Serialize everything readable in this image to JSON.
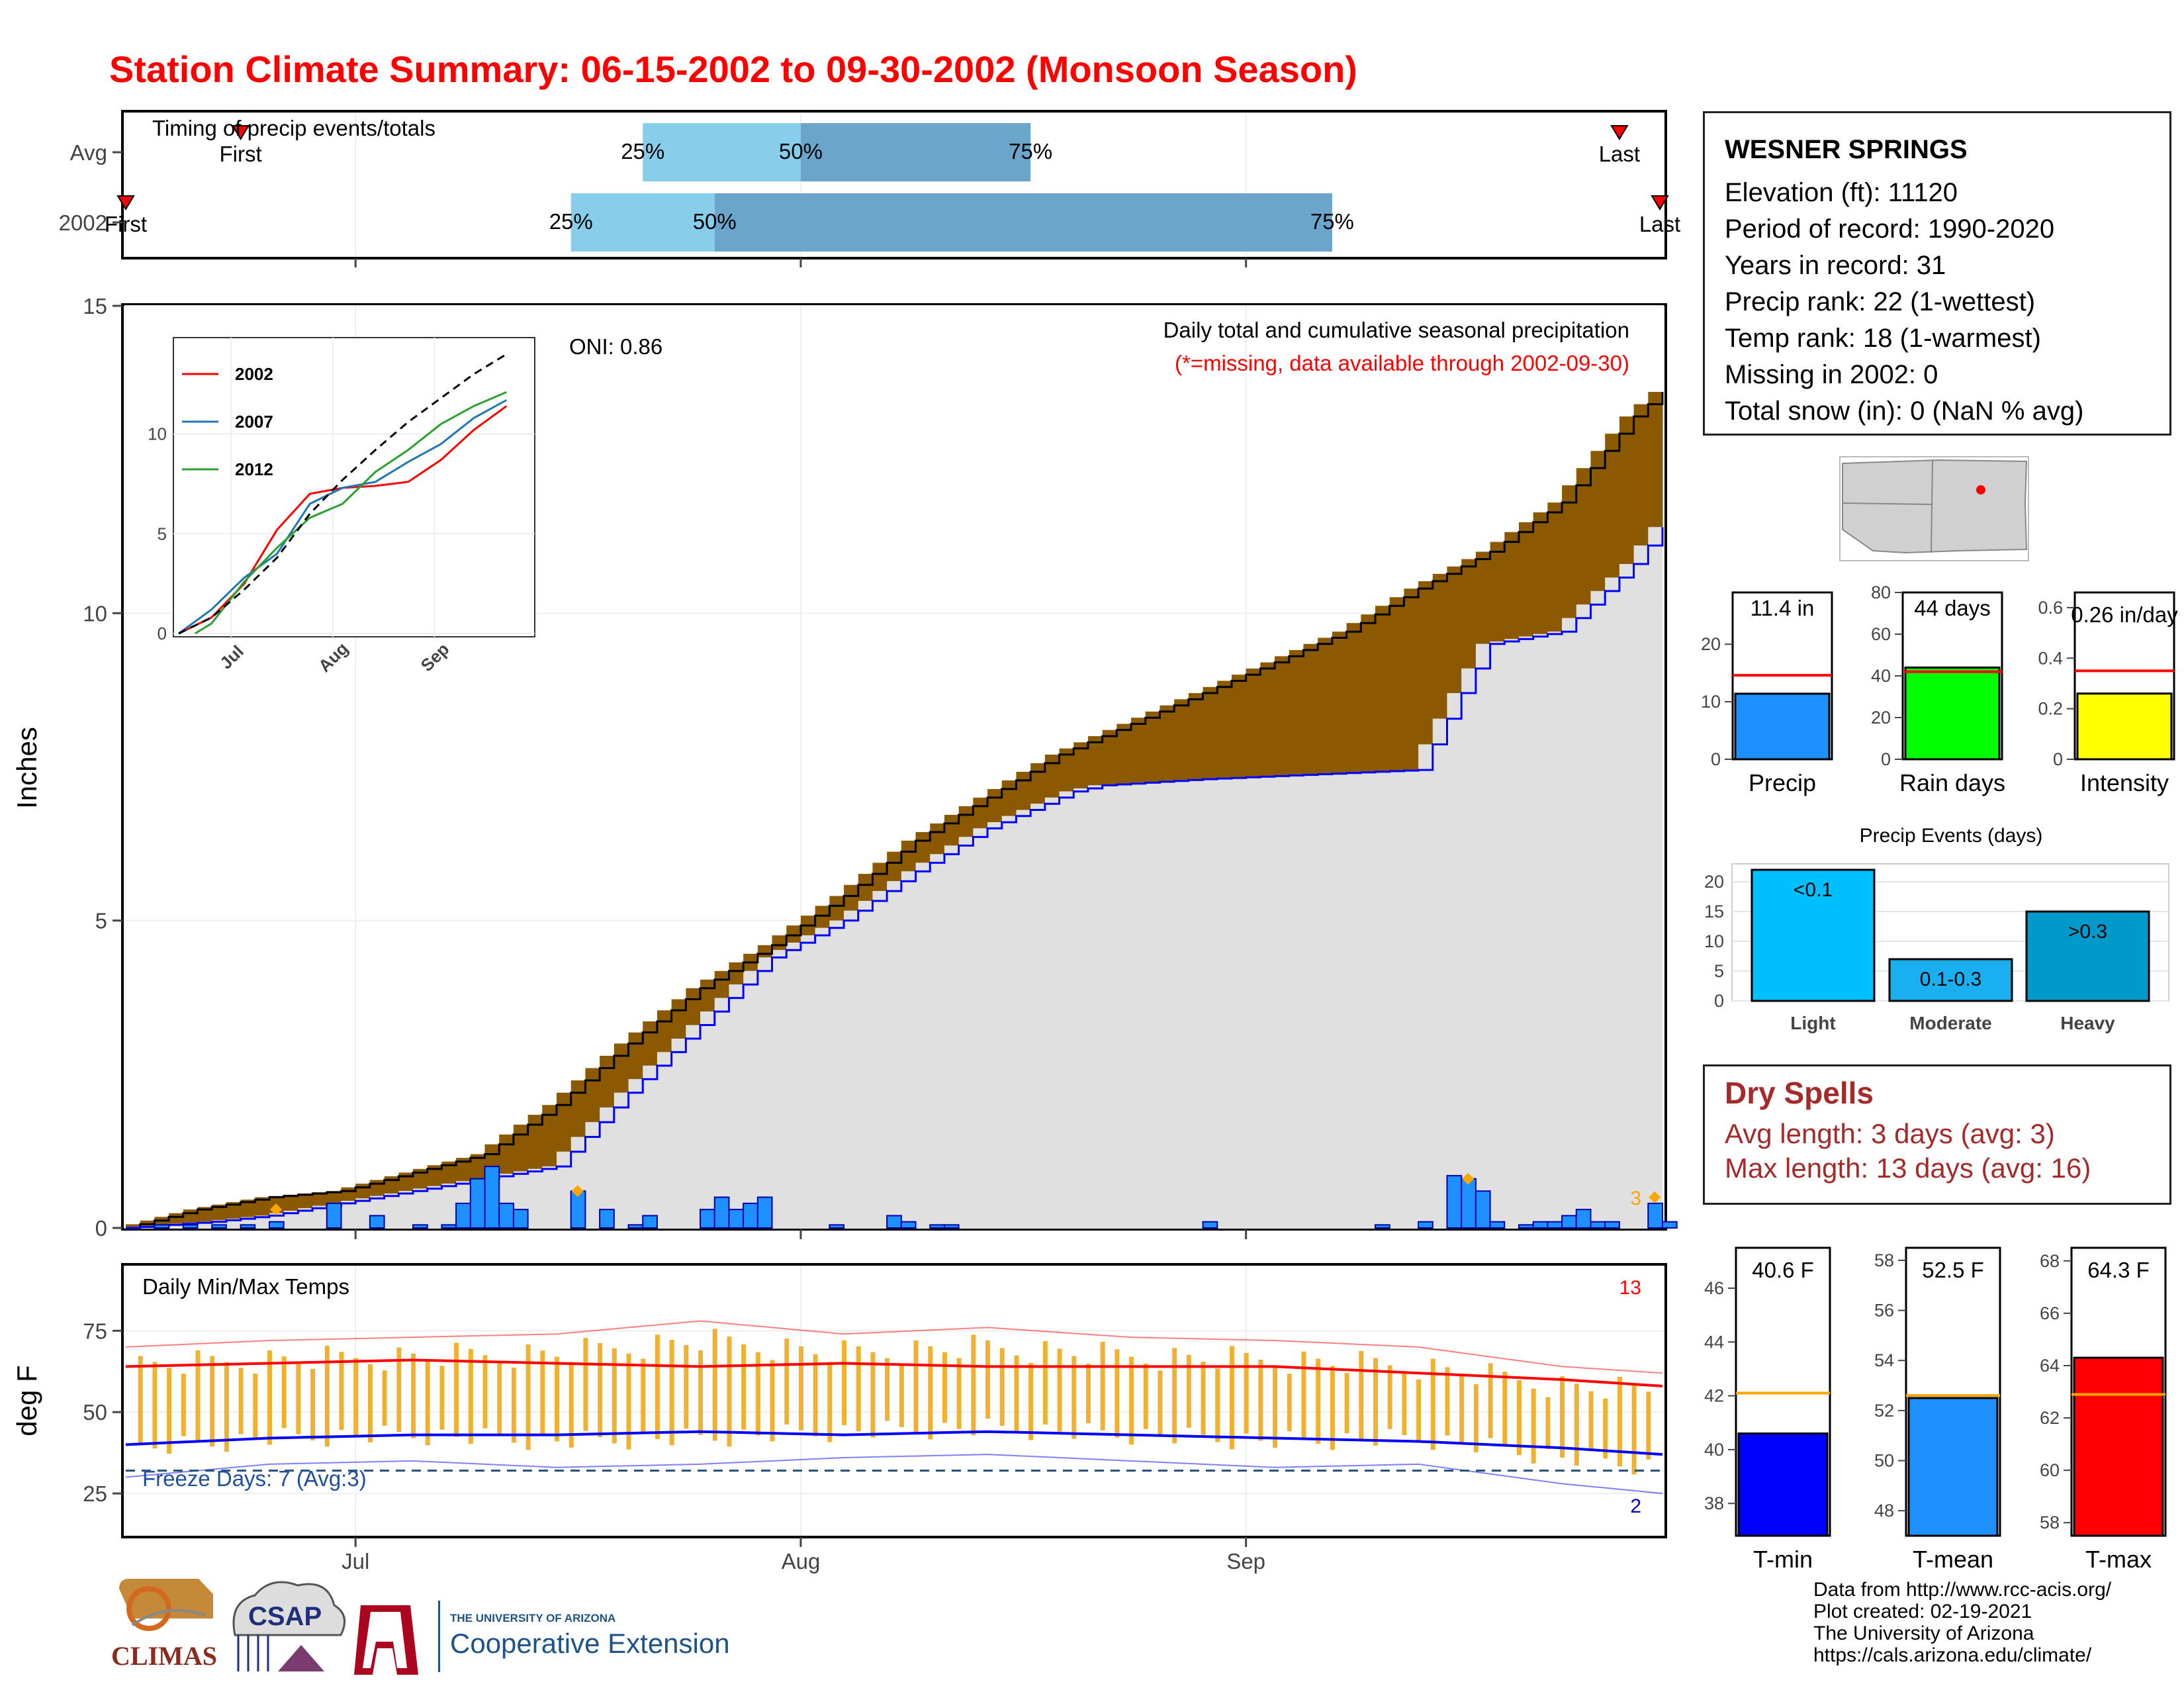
{
  "title": "Station Climate Summary: 06-15-2002 to 09-30-2002 (Monsoon Season)",
  "colors": {
    "title": "#ff0000",
    "light_blue": "#87ceeb",
    "mid_blue": "#6ca5cc",
    "brown": "#8b5a00",
    "green": "#008b00",
    "gray_fill": "#e0e0e0",
    "daily_bar": "#1e90ff",
    "tmax": "#ff0000",
    "tmin": "#0000ff",
    "temp_bar": "#f0b030",
    "dry_text": "#a52a2a"
  },
  "info": {
    "station": "WESNER SPRINGS",
    "lines": [
      "Elevation (ft): 11120",
      "Period of record: 1990-2020",
      "Years in record: 31",
      "Precip rank: 22 (1-wettest)",
      "Temp rank: 18 (1-warmest)",
      "Missing in 2002: 0",
      "Total snow (in): 0 (NaN % avg)"
    ]
  },
  "dry_spells": {
    "title": "Dry Spells",
    "avg": "Avg length: 3 days (avg: 3)",
    "max": "Max length: 13 days (avg: 16)"
  },
  "credits": [
    "Data from http://www.rcc-acis.org/",
    "Plot created: 02-19-2021",
    "The University of Arizona",
    "https://cals.arizona.edu/climate/"
  ],
  "logos": {
    "climas": "CLIMAS",
    "csap": "CSAP",
    "ua_small": "THE UNIVERSITY OF ARIZONA",
    "ua_big": "Cooperative Extension"
  },
  "chart_data": [
    {
      "type": "bar",
      "name": "timing",
      "title": "Timing of precip events/totals",
      "x_range": [
        "06-15",
        "09-30"
      ],
      "rows": [
        {
          "label": "Avg",
          "first": "06-23",
          "p25": "07-21",
          "p50": "08-01",
          "p75": "08-17",
          "last": "09-27",
          "first_label": "First",
          "last_label": "Last"
        },
        {
          "label": "2002",
          "first": "06-15",
          "p25": "07-16",
          "p50": "07-26",
          "p75": "09-07",
          "last": "09-30",
          "first_label": "First",
          "last_label": "Last"
        }
      ],
      "pct_labels": [
        "25%",
        "50%",
        "75%"
      ]
    },
    {
      "type": "area",
      "name": "cumulative",
      "title": "Daily total and cumulative seasonal precipitation",
      "subtitle": "(*=missing, data available through 2002-09-30)",
      "ylabel": "Inches",
      "ylim": [
        0,
        15
      ],
      "yticks": [
        0,
        5,
        10,
        15
      ],
      "xticks": [
        "Jul",
        "Aug",
        "Sep"
      ],
      "oni": "ONI: 0.86",
      "extreme_count": "3",
      "avg_cumulative": [
        [
          0,
          0
        ],
        [
          5,
          0.3
        ],
        [
          10,
          0.5
        ],
        [
          15,
          0.6
        ],
        [
          20,
          0.9
        ],
        [
          25,
          1.2
        ],
        [
          30,
          2.0
        ],
        [
          35,
          3.0
        ],
        [
          40,
          3.9
        ],
        [
          45,
          4.6
        ],
        [
          50,
          5.4
        ],
        [
          55,
          6.3
        ],
        [
          60,
          7.0
        ],
        [
          65,
          7.7
        ],
        [
          70,
          8.2
        ],
        [
          75,
          8.7
        ],
        [
          80,
          9.2
        ],
        [
          85,
          9.7
        ],
        [
          90,
          10.4
        ],
        [
          95,
          11.0
        ],
        [
          100,
          11.8
        ],
        [
          105,
          13.2
        ],
        [
          107,
          13.6
        ]
      ],
      "obs_cumulative": [
        [
          0,
          0
        ],
        [
          6,
          0.1
        ],
        [
          10,
          0.2
        ],
        [
          15,
          0.4
        ],
        [
          20,
          0.6
        ],
        [
          30,
          1.0
        ],
        [
          35,
          2.2
        ],
        [
          40,
          3.3
        ],
        [
          45,
          4.4
        ],
        [
          50,
          5.0
        ],
        [
          55,
          5.8
        ],
        [
          60,
          6.5
        ],
        [
          63,
          6.8
        ],
        [
          66,
          7.1
        ],
        [
          68,
          7.2
        ],
        [
          75,
          7.3
        ],
        [
          85,
          7.4
        ],
        [
          90,
          7.45
        ],
        [
          93,
          8.7
        ],
        [
          95,
          9.5
        ],
        [
          100,
          9.7
        ],
        [
          105,
          10.8
        ],
        [
          107,
          11.4
        ]
      ],
      "daily": [
        [
          2,
          0.05
        ],
        [
          4,
          0.05
        ],
        [
          6,
          0.05
        ],
        [
          8,
          0.05
        ],
        [
          10,
          0.1
        ],
        [
          14,
          0.4
        ],
        [
          17,
          0.2
        ],
        [
          20,
          0.05
        ],
        [
          22,
          0.05
        ],
        [
          23,
          0.4
        ],
        [
          24,
          0.8
        ],
        [
          25,
          1.0
        ],
        [
          26,
          0.4
        ],
        [
          27,
          0.3
        ],
        [
          31,
          0.6
        ],
        [
          33,
          0.3
        ],
        [
          35,
          0.05
        ],
        [
          36,
          0.2
        ],
        [
          40,
          0.3
        ],
        [
          41,
          0.5
        ],
        [
          42,
          0.3
        ],
        [
          43,
          0.4
        ],
        [
          44,
          0.5
        ],
        [
          49,
          0.05
        ],
        [
          53,
          0.2
        ],
        [
          54,
          0.1
        ],
        [
          56,
          0.05
        ],
        [
          57,
          0.05
        ],
        [
          75,
          0.1
        ],
        [
          87,
          0.05
        ],
        [
          90,
          0.1
        ],
        [
          92,
          0.85
        ],
        [
          93,
          0.8
        ],
        [
          94,
          0.6
        ],
        [
          95,
          0.1
        ],
        [
          97,
          0.05
        ],
        [
          98,
          0.1
        ],
        [
          99,
          0.1
        ],
        [
          100,
          0.2
        ],
        [
          101,
          0.3
        ],
        [
          102,
          0.1
        ],
        [
          103,
          0.1
        ],
        [
          106,
          0.4
        ],
        [
          107,
          0.1
        ]
      ],
      "extremes": [
        [
          10,
          0.3
        ],
        [
          31,
          0.6
        ],
        [
          93,
          0.8
        ],
        [
          106,
          0.5
        ]
      ]
    },
    {
      "type": "line",
      "name": "inset",
      "yticks": [
        0,
        5,
        10
      ],
      "xticks": [
        "Jul",
        "Aug",
        "Sep"
      ],
      "series": [
        {
          "name": "2002",
          "values": [
            [
              0,
              0
            ],
            [
              10,
              0.8
            ],
            [
              20,
              2.5
            ],
            [
              30,
              5.2
            ],
            [
              40,
              7.0
            ],
            [
              50,
              7.3
            ],
            [
              60,
              7.4
            ],
            [
              70,
              7.6
            ],
            [
              80,
              8.7
            ],
            [
              90,
              10.2
            ],
            [
              100,
              11.4
            ]
          ]
        },
        {
          "name": "2007",
          "values": [
            [
              0,
              0
            ],
            [
              10,
              1.2
            ],
            [
              20,
              2.8
            ],
            [
              30,
              4.0
            ],
            [
              40,
              6.5
            ],
            [
              50,
              7.3
            ],
            [
              60,
              7.6
            ],
            [
              70,
              8.6
            ],
            [
              80,
              9.5
            ],
            [
              90,
              10.8
            ],
            [
              100,
              11.7
            ]
          ]
        },
        {
          "name": "2012",
          "values": [
            [
              5,
              0
            ],
            [
              10,
              0.5
            ],
            [
              20,
              2.6
            ],
            [
              30,
              4.3
            ],
            [
              40,
              5.8
            ],
            [
              50,
              6.5
            ],
            [
              60,
              8.1
            ],
            [
              70,
              9.2
            ],
            [
              80,
              10.5
            ],
            [
              90,
              11.4
            ],
            [
              100,
              12.1
            ]
          ]
        }
      ],
      "avg": [
        [
          0,
          0
        ],
        [
          10,
          0.8
        ],
        [
          20,
          2.2
        ],
        [
          30,
          3.8
        ],
        [
          40,
          6.0
        ],
        [
          50,
          7.7
        ],
        [
          60,
          9.2
        ],
        [
          70,
          10.6
        ],
        [
          80,
          11.8
        ],
        [
          90,
          13.0
        ],
        [
          100,
          14.0
        ]
      ]
    },
    {
      "type": "line",
      "name": "temps",
      "title": "Daily Min/Max Temps",
      "ylabel": "deg F",
      "yticks": [
        25,
        50,
        75
      ],
      "xticks": [
        "Jul",
        "Aug",
        "Sep"
      ],
      "freeze": "Freeze Days: 7 (Avg:3)",
      "hot_count": "13",
      "cold_count": "2",
      "freeze_line": 32,
      "avg_max": [
        [
          0,
          64
        ],
        [
          10,
          65
        ],
        [
          20,
          66
        ],
        [
          30,
          65
        ],
        [
          40,
          64
        ],
        [
          50,
          65
        ],
        [
          60,
          64
        ],
        [
          70,
          64
        ],
        [
          80,
          64
        ],
        [
          90,
          62
        ],
        [
          100,
          60
        ],
        [
          107,
          58
        ]
      ],
      "avg_min": [
        [
          0,
          40
        ],
        [
          10,
          42
        ],
        [
          20,
          43
        ],
        [
          30,
          43
        ],
        [
          40,
          44
        ],
        [
          50,
          43
        ],
        [
          60,
          44
        ],
        [
          70,
          43
        ],
        [
          80,
          42
        ],
        [
          90,
          41
        ],
        [
          100,
          39
        ],
        [
          107,
          37
        ]
      ],
      "obs_max": [
        [
          0,
          70
        ],
        [
          10,
          72
        ],
        [
          20,
          73
        ],
        [
          30,
          74
        ],
        [
          40,
          78
        ],
        [
          50,
          74
        ],
        [
          60,
          76
        ],
        [
          70,
          73
        ],
        [
          80,
          72
        ],
        [
          90,
          70
        ],
        [
          100,
          64
        ],
        [
          107,
          62
        ]
      ],
      "obs_min": [
        [
          0,
          30
        ],
        [
          10,
          34
        ],
        [
          20,
          35
        ],
        [
          30,
          33
        ],
        [
          40,
          34
        ],
        [
          50,
          36
        ],
        [
          60,
          37
        ],
        [
          70,
          35
        ],
        [
          80,
          33
        ],
        [
          90,
          34
        ],
        [
          100,
          28
        ],
        [
          107,
          25
        ]
      ]
    },
    {
      "type": "bar",
      "name": "summary_bars",
      "panels": [
        {
          "label": "Precip",
          "value": 11.4,
          "avg": 14.6,
          "text": "11.4 in",
          "yticks": [
            0,
            10,
            20
          ],
          "ylim": [
            0,
            29
          ],
          "color": "#1e90ff"
        },
        {
          "label": "Rain days",
          "value": 44,
          "avg": 42,
          "text": "44 days",
          "yticks": [
            0,
            20,
            40,
            60,
            80
          ],
          "ylim": [
            0,
            80
          ],
          "color": "#00ff00"
        },
        {
          "label": "Intensity",
          "value": 0.26,
          "avg": 0.35,
          "text": "0.26 in/day",
          "yticks": [
            0.0,
            0.2,
            0.4,
            0.6
          ],
          "ylim": [
            0,
            0.66
          ],
          "color": "#ffff00"
        }
      ]
    },
    {
      "type": "bar",
      "name": "events",
      "title": "Precip Events (days)",
      "categories": [
        "Light",
        "Moderate",
        "Heavy"
      ],
      "values": [
        22,
        7,
        15
      ],
      "labels": [
        "<0.1",
        "0.1-0.3",
        ">0.3"
      ],
      "colors": [
        "#00bfff",
        "#1ab0f0",
        "#0099cc"
      ],
      "yticks": [
        0,
        5,
        10,
        15,
        20
      ],
      "ylim": [
        0,
        23
      ]
    },
    {
      "type": "bar",
      "name": "temp_bars",
      "panels": [
        {
          "label": "T-min",
          "value": 40.6,
          "avg": 42.1,
          "text": "40.6 F",
          "yticks": [
            38,
            40,
            42,
            44,
            46
          ],
          "ylim": [
            36.8,
            47.5
          ],
          "color": "#0000ff"
        },
        {
          "label": "T-mean",
          "value": 52.5,
          "avg": 52.6,
          "text": "52.5 F",
          "yticks": [
            48,
            50,
            52,
            54,
            56,
            58
          ],
          "ylim": [
            47,
            58.5
          ],
          "color": "#1e90ff"
        },
        {
          "label": "T-max",
          "value": 64.3,
          "avg": 62.9,
          "text": "64.3 F",
          "yticks": [
            58,
            60,
            62,
            64,
            66,
            68
          ],
          "ylim": [
            57.5,
            68.5
          ],
          "color": "#ff0000"
        }
      ]
    }
  ]
}
